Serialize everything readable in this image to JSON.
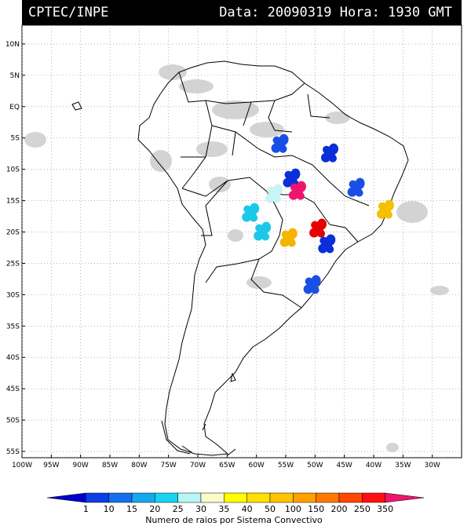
{
  "header": {
    "org": "CPTEC/INPE",
    "datetime": "Data: 20090319 Hora: 1930 GMT"
  },
  "map": {
    "lat_range": [
      -56,
      13
    ],
    "lon_range": [
      -100,
      -25
    ],
    "lat_ticks": [
      {
        "value": 10,
        "label": "10N"
      },
      {
        "value": 5,
        "label": "5N"
      },
      {
        "value": 0,
        "label": "EQ"
      },
      {
        "value": -5,
        "label": "5S"
      },
      {
        "value": -10,
        "label": "10S"
      },
      {
        "value": -15,
        "label": "15S"
      },
      {
        "value": -20,
        "label": "20S"
      },
      {
        "value": -25,
        "label": "25S"
      },
      {
        "value": -30,
        "label": "30S"
      },
      {
        "value": -35,
        "label": "35S"
      },
      {
        "value": -40,
        "label": "40S"
      },
      {
        "value": -45,
        "label": "45S"
      },
      {
        "value": -50,
        "label": "50S"
      },
      {
        "value": -55,
        "label": "55S"
      }
    ],
    "lon_ticks": [
      {
        "value": -100,
        "label": "100W"
      },
      {
        "value": -95,
        "label": "95W"
      },
      {
        "value": -90,
        "label": "90W"
      },
      {
        "value": -85,
        "label": "85W"
      },
      {
        "value": -80,
        "label": "80W"
      },
      {
        "value": -75,
        "label": "75W"
      },
      {
        "value": -70,
        "label": "70W"
      },
      {
        "value": -65,
        "label": "65W"
      },
      {
        "value": -60,
        "label": "60W"
      },
      {
        "value": -55,
        "label": "55W"
      },
      {
        "value": -50,
        "label": "50W"
      },
      {
        "value": -45,
        "label": "45W"
      },
      {
        "value": -40,
        "label": "40W"
      },
      {
        "value": -35,
        "label": "35W"
      },
      {
        "value": -30,
        "label": "30W"
      }
    ],
    "convective_systems": [
      {
        "lon": -56,
        "lat": -6,
        "color": "#1a4fe6"
      },
      {
        "lon": -47.5,
        "lat": -7.5,
        "color": "#0a2fd8"
      },
      {
        "lon": -54,
        "lat": -11.5,
        "color": "#0a2fd8"
      },
      {
        "lon": -43,
        "lat": -13,
        "color": "#1a4fe6"
      },
      {
        "lon": -57,
        "lat": -14,
        "color": "#c8f4f4"
      },
      {
        "lon": -53,
        "lat": -13.5,
        "color": "#ee1470"
      },
      {
        "lon": -38,
        "lat": -16.5,
        "color": "#f5c000"
      },
      {
        "lon": -61,
        "lat": -17,
        "color": "#1cc8e8"
      },
      {
        "lon": -59,
        "lat": -20,
        "color": "#1cc8e8"
      },
      {
        "lon": -49.5,
        "lat": -19.5,
        "color": "#e80000"
      },
      {
        "lon": -54.5,
        "lat": -21,
        "color": "#f5b400"
      },
      {
        "lon": -48,
        "lat": -22,
        "color": "#0a2fd8"
      },
      {
        "lon": -50.5,
        "lat": -28.5,
        "color": "#1a4fe6"
      }
    ]
  },
  "legend": {
    "title": "Numero de raios por Sistema Convectivo",
    "colors": [
      "#0000cc",
      "#0a3ee6",
      "#1570ee",
      "#14a8ee",
      "#16d4f0",
      "#b8f6f6",
      "#fbfbc8",
      "#ffff00",
      "#ffe000",
      "#ffc400",
      "#ffa000",
      "#ff7800",
      "#ff4800",
      "#ff1010",
      "#f0146e"
    ],
    "labels": [
      "1",
      "10",
      "15",
      "20",
      "25",
      "30",
      "35",
      "40",
      "50",
      "100",
      "150",
      "200",
      "250",
      "350"
    ]
  }
}
